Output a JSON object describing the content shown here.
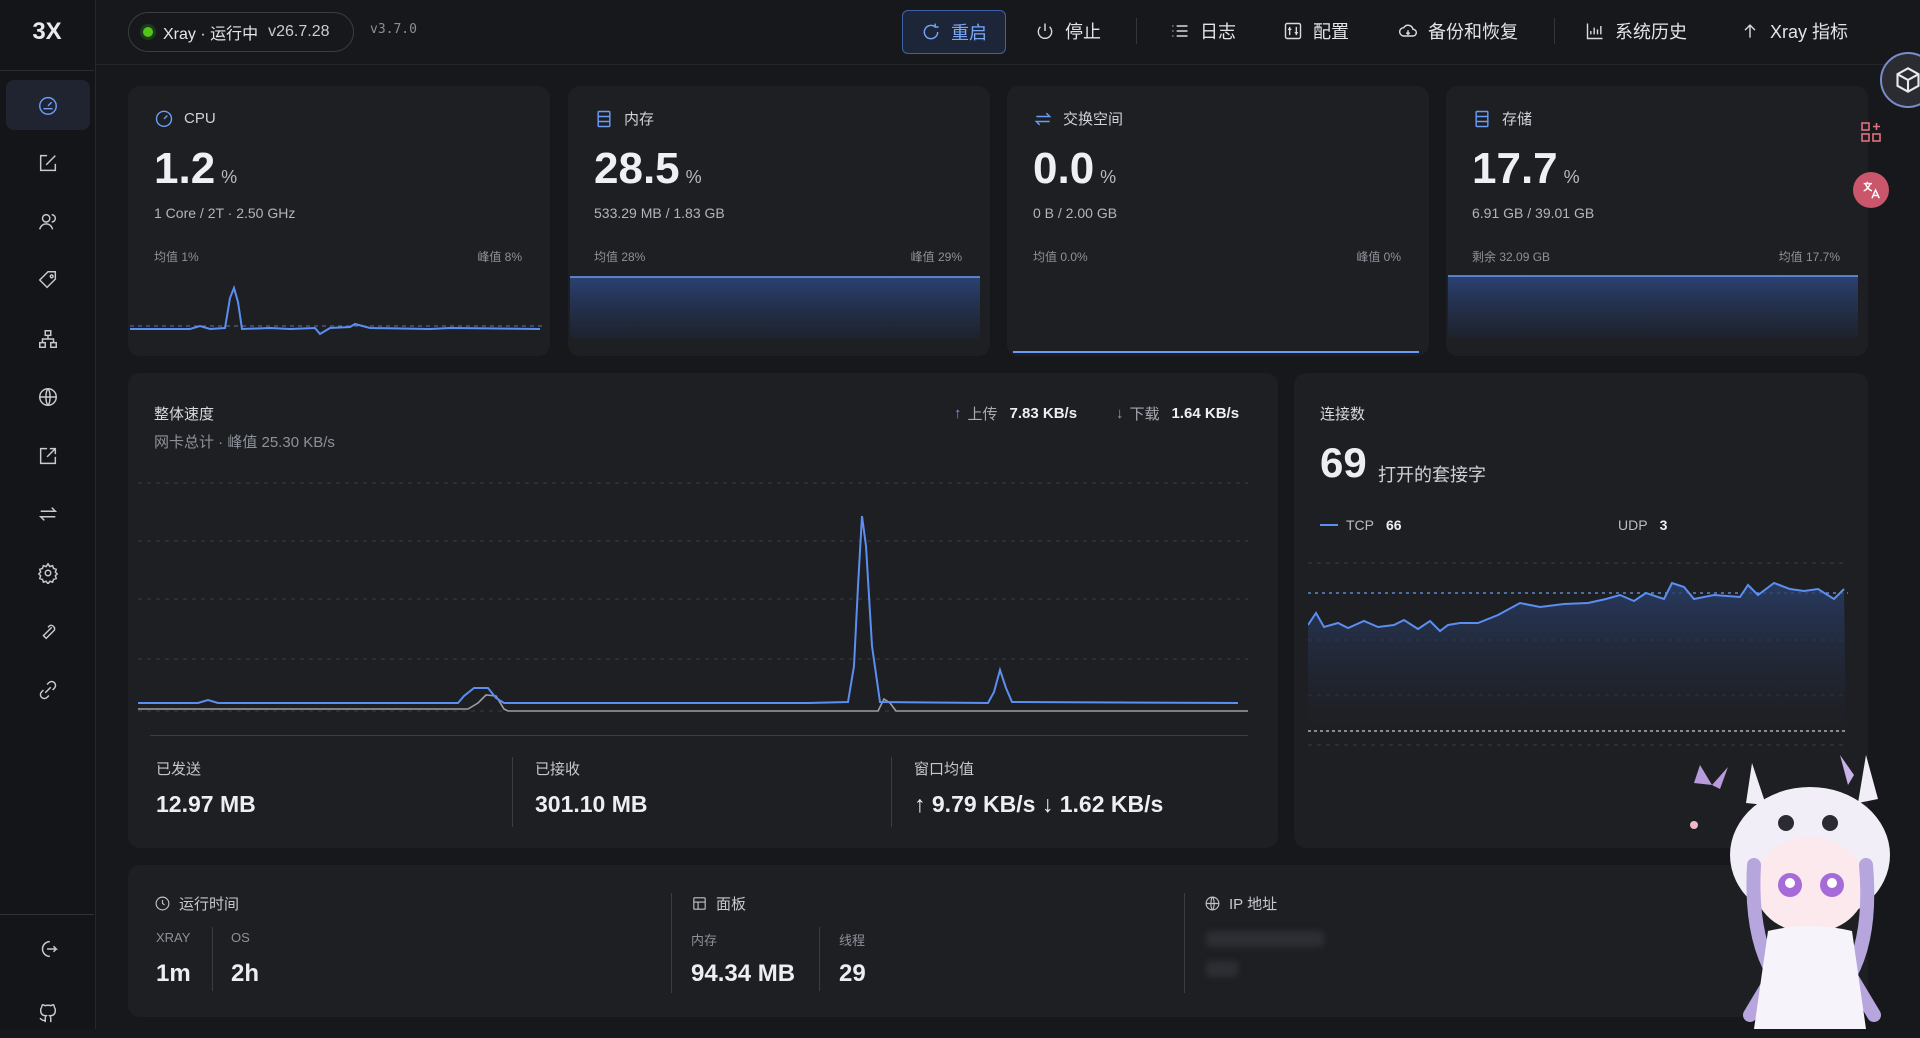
{
  "sidebar": {
    "logo": "3X",
    "items": [
      {
        "name": "dashboard",
        "icon": "dashboard-icon",
        "active": true
      },
      {
        "name": "inbounds",
        "icon": "edit-icon"
      },
      {
        "name": "clients",
        "icon": "users-icon"
      },
      {
        "name": "tags",
        "icon": "tag-icon"
      },
      {
        "name": "nodes",
        "icon": "sitemap-icon"
      },
      {
        "name": "routing",
        "icon": "globe-icon"
      },
      {
        "name": "outbounds",
        "icon": "export-icon"
      },
      {
        "name": "balancer",
        "icon": "swap-icon"
      },
      {
        "name": "settings",
        "icon": "gear-icon"
      },
      {
        "name": "tools",
        "icon": "wrench-icon"
      },
      {
        "name": "api",
        "icon": "link-icon"
      }
    ],
    "bottom": [
      {
        "name": "logout",
        "icon": "logout-icon"
      },
      {
        "name": "github",
        "icon": "github-icon"
      }
    ]
  },
  "topbar": {
    "status_text": "Xray · 运行中",
    "xray_version": "v26.7.28",
    "panel_version": "v3.7.0",
    "restart": "重启",
    "stop": "停止",
    "logs": "日志",
    "config": "配置",
    "backup": "备份和恢复",
    "history": "系统历史",
    "metrics": "Xray 指标"
  },
  "cpu": {
    "title": "CPU",
    "value": "1.2",
    "unit": "%",
    "sub": "1 Core / 2T · 2.50 GHz",
    "left": "均值 1%",
    "right": "峰值 8%"
  },
  "memory": {
    "title": "内存",
    "value": "28.5",
    "unit": "%",
    "sub": "533.29 MB / 1.83 GB",
    "left": "均值 28%",
    "right": "峰值 29%"
  },
  "swap": {
    "title": "交换空间",
    "value": "0.0",
    "unit": "%",
    "sub": "0 B / 2.00 GB",
    "left": "均值 0.0%",
    "right": "峰值 0%"
  },
  "storage": {
    "title": "存储",
    "value": "17.7",
    "unit": "%",
    "sub": "6.91 GB / 39.01 GB",
    "left": "剩余 32.09 GB",
    "right": "均值 17.7%"
  },
  "speed": {
    "title": "整体速度",
    "subtitle": "网卡总计 · 峰值 25.30 KB/s",
    "upload_label": "上传",
    "upload_value": "7.83 KB/s",
    "download_label": "下载",
    "download_value": "1.64 KB/s",
    "sent_label": "已发送",
    "sent_value": "12.97 MB",
    "recv_label": "已接收",
    "recv_value": "301.10 MB",
    "avg_label": "窗口均值",
    "avg_value": "↑ 9.79 KB/s ↓ 1.62 KB/s"
  },
  "connections": {
    "title": "连接数",
    "count": "69",
    "count_label": "打开的套接字",
    "tcp_label": "TCP",
    "tcp_value": "66",
    "udp_label": "UDP",
    "udp_value": "3"
  },
  "bottom": {
    "uptime_label": "运行时间",
    "xray_label": "XRAY",
    "xray_value": "1m",
    "os_label": "OS",
    "os_value": "2h",
    "panel_label": "面板",
    "mem_label": "内存",
    "mem_value": "94.34 MB",
    "threads_label": "线程",
    "threads_value": "29",
    "ip_label": "IP 地址"
  },
  "colors": {
    "accent": "#6b9cf5",
    "bg": "#17181b",
    "card": "#1e1f23",
    "ok": "#52c41a"
  }
}
